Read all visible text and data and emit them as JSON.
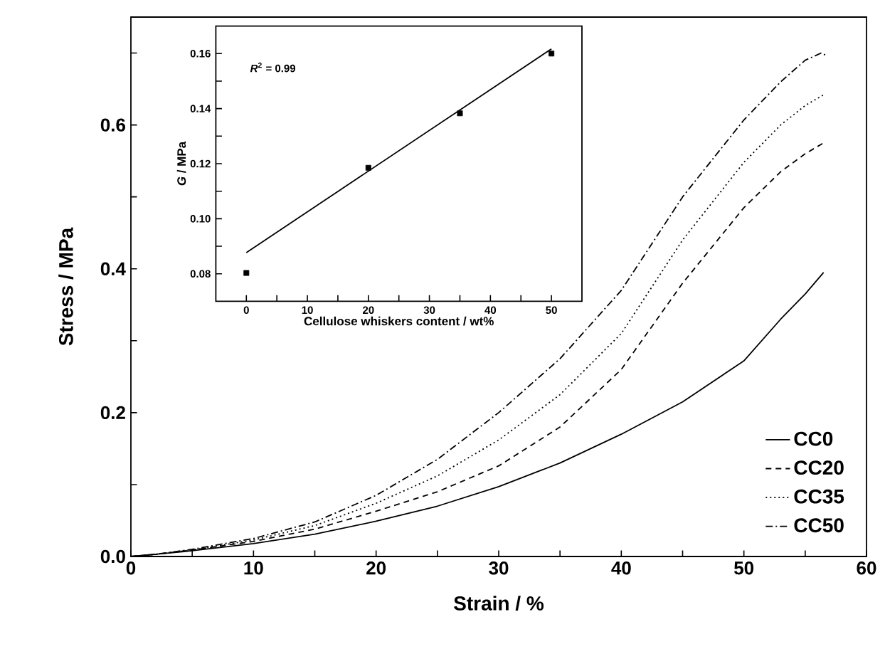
{
  "chart_data": [
    {
      "type": "line",
      "xlabel": "Strain / %",
      "ylabel": "Stress / MPa",
      "xlim": [
        0,
        60
      ],
      "ylim": [
        0,
        0.75
      ],
      "xticks": [
        0,
        {
          "value": 5,
          "label": null
        },
        10,
        {
          "value": 15,
          "label": null
        },
        20,
        {
          "value": 25,
          "label": null
        },
        30,
        {
          "value": 35,
          "label": null
        },
        40,
        {
          "value": 45,
          "label": null
        },
        50,
        {
          "value": 55,
          "label": null
        },
        60
      ],
      "yticks": [
        {
          "value": 0,
          "label": "0.0"
        },
        {
          "value": 0.1,
          "label": null
        },
        0.2,
        {
          "value": 0.3,
          "label": null
        },
        0.4,
        {
          "value": 0.5,
          "label": null
        },
        0.6,
        {
          "value": 0.7,
          "label": null
        }
      ],
      "legend": "bottom right",
      "marker": "none",
      "series": [
        {
          "name": "CC0",
          "color": "#000000",
          "line_style": "solid",
          "x": [
            0,
            2,
            5,
            10,
            15,
            20,
            25,
            30,
            35,
            40,
            45,
            50,
            53,
            55,
            56.5
          ],
          "values": [
            0,
            0.003,
            0.008,
            0.018,
            0.031,
            0.049,
            0.07,
            0.097,
            0.13,
            0.17,
            0.215,
            0.272,
            0.33,
            0.365,
            0.395
          ]
        },
        {
          "name": "CC20",
          "color": "#000000",
          "line_style": "dashed",
          "x": [
            0,
            2,
            5,
            10,
            15,
            20,
            25,
            30,
            35,
            40,
            45,
            50,
            53,
            55,
            56.5
          ],
          "values": [
            0,
            0.003,
            0.009,
            0.021,
            0.038,
            0.063,
            0.09,
            0.126,
            0.18,
            0.26,
            0.38,
            0.485,
            0.535,
            0.56,
            0.575
          ]
        },
        {
          "name": "CC35",
          "color": "#000000",
          "line_style": "dotted",
          "x": [
            0,
            2,
            5,
            10,
            15,
            20,
            25,
            30,
            35,
            40,
            45,
            50,
            53,
            55,
            56.5
          ],
          "values": [
            0,
            0.003,
            0.009,
            0.023,
            0.043,
            0.074,
            0.112,
            0.162,
            0.225,
            0.31,
            0.44,
            0.548,
            0.6,
            0.627,
            0.642
          ]
        },
        {
          "name": "CC50",
          "color": "#000000",
          "line_style": "dashdot",
          "x": [
            0,
            2,
            5,
            10,
            15,
            20,
            25,
            30,
            35,
            40,
            45,
            50,
            53,
            55,
            56.3,
            56.8
          ],
          "values": [
            0,
            0.003,
            0.01,
            0.025,
            0.048,
            0.085,
            0.135,
            0.2,
            0.275,
            0.37,
            0.5,
            0.607,
            0.66,
            0.69,
            0.7,
            0.696
          ]
        }
      ]
    },
    {
      "type": "scatter",
      "xlabel": "Cellulose whiskers content / wt%",
      "ylabel": "*G* / MPa",
      "xlim": [
        -5,
        55
      ],
      "ylim": [
        0.07,
        0.17
      ],
      "xticks": [
        0,
        {
          "value": 5,
          "label": null
        },
        10,
        {
          "value": 15,
          "label": null
        },
        20,
        {
          "value": 25,
          "label": null
        },
        30,
        {
          "value": 35,
          "label": null
        },
        40,
        {
          "value": 45,
          "label": null
        },
        50
      ],
      "yticks": [
        {
          "value": 0.08,
          "label": "0.08"
        },
        {
          "value": 0.09,
          "label": null
        },
        {
          "value": 0.1,
          "label": "0.10"
        },
        {
          "value": 0.11,
          "label": null
        },
        {
          "value": 0.12,
          "label": "0.12"
        },
        {
          "value": 0.13,
          "label": null
        },
        {
          "value": 0.14,
          "label": "0.14"
        },
        {
          "value": 0.15,
          "label": null
        },
        {
          "value": 0.16,
          "label": "0.16"
        }
      ],
      "marker": "square",
      "annotations": [
        "*R*$^{2}$ = 0.99"
      ],
      "series": [
        {
          "color": "#000000",
          "x": [
            0,
            20,
            35,
            50
          ],
          "values": [
            0.0803,
            0.1185,
            0.1383,
            0.16
          ]
        },
        {
          "type": "line",
          "color": "#000000",
          "marker": "none",
          "x": [
            0,
            50
          ],
          "values": [
            0.0877,
            0.1617
          ]
        }
      ]
    }
  ]
}
